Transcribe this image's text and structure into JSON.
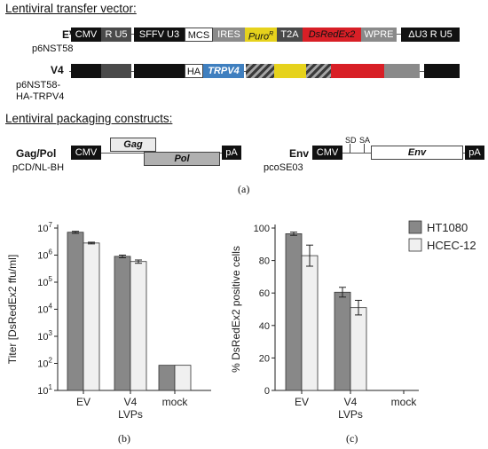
{
  "transfer": {
    "title": "Lentiviral transfer vector:",
    "ev": {
      "name": "EV",
      "plasmid": "p6NST58",
      "segments": [
        "CMV",
        "R U5",
        "SFFV U3",
        "MCS",
        "IRES",
        "Puro",
        "R",
        "T2A",
        "DsRedEx2",
        "WPRE",
        "ΔU3 R U5"
      ]
    },
    "v4": {
      "name": "V4",
      "plasmid_line1": "p6NST58-",
      "plasmid_line2": "HA-TRPV4",
      "ha": "HA",
      "trpv4": "TRPV4"
    }
  },
  "packaging": {
    "title": "Lentiviral packaging constructs:",
    "gagpol": {
      "name": "Gag/Pol",
      "plasmid": "pCD/NL-BH",
      "cmv": "CMV",
      "gag": "Gag",
      "pol": "Pol",
      "pa": "pA"
    },
    "env": {
      "name": "Env",
      "plasmid": "pcoSE03",
      "cmv": "CMV",
      "sd": "SD",
      "sa": "SA",
      "env": "Env",
      "pa": "pA"
    }
  },
  "panels": {
    "a": "(a)",
    "b": "(b)",
    "c": "(c)"
  },
  "colors": {
    "ht1080": "#888888",
    "hcec12": "#f0f0f0",
    "red": "#d81f26",
    "yellow": "#e6d21c",
    "blue": "#3f7fbf"
  },
  "chart_data": [
    {
      "type": "bar",
      "ylabel": "Titer [DsRedEx2 ffu/ml]",
      "yscale": "log",
      "ylim": [
        10,
        10000000
      ],
      "yticks": [
        "10^1",
        "10^2",
        "10^3",
        "10^4",
        "10^5",
        "10^6",
        "10^7"
      ],
      "categories": [
        "EV",
        "V4",
        "mock"
      ],
      "xlabel": "LVPs",
      "series": [
        {
          "name": "HT1080",
          "values": [
            7000000,
            900000,
            85
          ],
          "errors": [
            600000,
            100000,
            0
          ]
        },
        {
          "name": "HCEC-12",
          "values": [
            2800000,
            580000,
            85
          ],
          "errors": [
            200000,
            80000,
            0
          ]
        }
      ]
    },
    {
      "type": "bar",
      "ylabel": "% DsRedEx2 positive cells",
      "ylim": [
        0,
        100
      ],
      "yticks": [
        "0",
        "20",
        "40",
        "60",
        "80",
        "100"
      ],
      "categories": [
        "EV",
        "V4",
        "mock"
      ],
      "xlabel": "LVPs",
      "legend": "top-right",
      "series": [
        {
          "name": "HT1080",
          "values": [
            96.5,
            60.5,
            0
          ],
          "errors": [
            1,
            3,
            0
          ]
        },
        {
          "name": "HCEC-12",
          "values": [
            83,
            51,
            0
          ],
          "errors": [
            6.5,
            4.5,
            0
          ]
        }
      ]
    }
  ]
}
